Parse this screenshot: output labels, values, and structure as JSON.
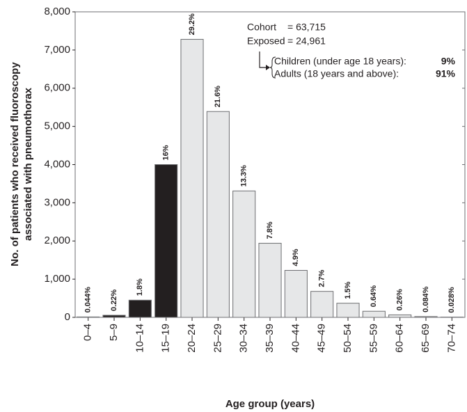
{
  "chart_data": {
    "type": "bar",
    "x_label": "Age group (years)",
    "y_label": [
      "No. of patients who received fluoroscopy",
      "associated with pneumothorax"
    ],
    "categories": [
      "0–4",
      "5–9",
      "10–14",
      "15–19",
      "20–24",
      "25–29",
      "30–34",
      "35–39",
      "40–44",
      "45–49",
      "50–54",
      "55–59",
      "60–64",
      "65–69",
      "70–74"
    ],
    "values": [
      11,
      55,
      450,
      4000,
      7280,
      5390,
      3310,
      1940,
      1230,
      680,
      370,
      160,
      65,
      21,
      7
    ],
    "value_labels": [
      "0.044%",
      "0.22%",
      "1.8%",
      "16%",
      "29.2%",
      "21.6%",
      "13.3%",
      "7.8%",
      "4.9%",
      "2.7%",
      "1.5%",
      "0.64%",
      "0.26%",
      "0.084%",
      "0.028%"
    ],
    "colors": [
      "#231f20",
      "#231f20",
      "#231f20",
      "#231f20",
      "#e6e7e8",
      "#e6e7e8",
      "#e6e7e8",
      "#e6e7e8",
      "#e6e7e8",
      "#e6e7e8",
      "#e6e7e8",
      "#e6e7e8",
      "#e6e7e8",
      "#e6e7e8",
      "#e6e7e8"
    ],
    "ylim": [
      0,
      8000
    ],
    "yticks": [
      0,
      {
        "value": 1000,
        "label": "1,000"
      },
      {
        "value": 2000,
        "label": "2,000"
      },
      {
        "value": 3000,
        "label": "3,000"
      },
      {
        "value": 4000,
        "label": "4,000"
      },
      {
        "value": 5000,
        "label": "5,000"
      },
      {
        "value": 6000,
        "label": "6,000"
      },
      {
        "value": 7000,
        "label": "7,000"
      },
      {
        "value": 8000,
        "label": "8,000"
      }
    ],
    "annotations": {
      "cohort_label": "Cohort",
      "cohort_value": "= 63,715",
      "exposed_label": "Exposed",
      "exposed_value": "= 24,961",
      "children_label": "Children (under age 18 years):",
      "children_value": "9%",
      "adults_label": "Adults (18 years and above):",
      "adults_value": "91%"
    }
  }
}
